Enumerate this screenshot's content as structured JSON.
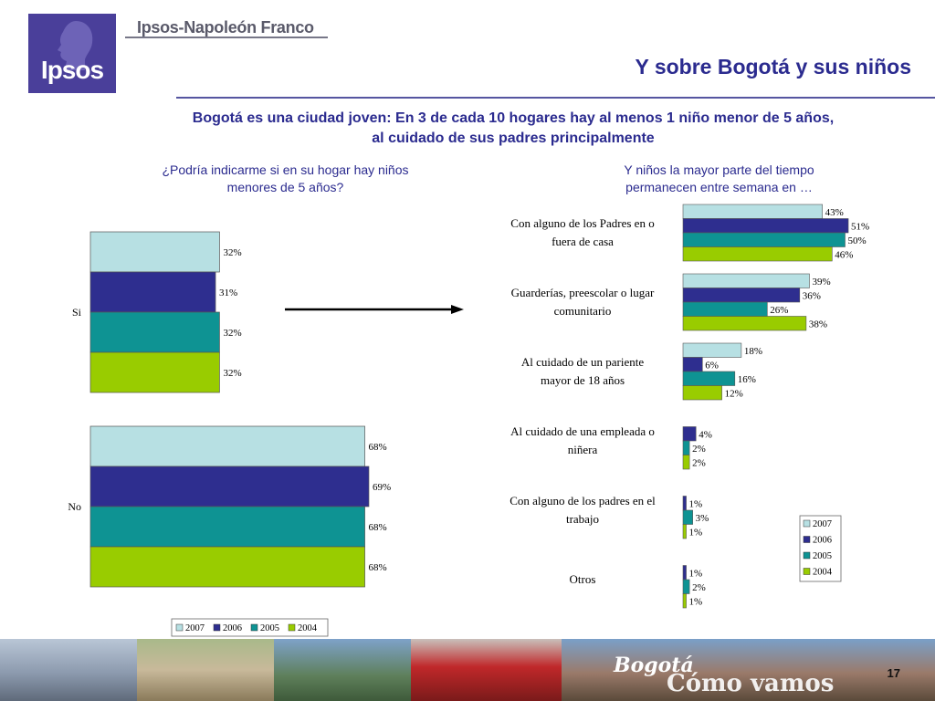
{
  "header": {
    "logo_text": "Ipsos",
    "brand": "Ipsos-Napoleón Franco",
    "title": "Y sobre Bogotá y sus niños"
  },
  "subtitle": {
    "line1": "Bogotá es una ciudad joven: En 3 de cada 10 hogares hay al menos 1 niño menor de 5 años,",
    "line2": "al cuidado de sus padres principalmente"
  },
  "questions": {
    "left_line1": "¿Podría indicarme si en su hogar hay niños",
    "left_line2": "menores de 5 años?",
    "right_line1": "Y niños la mayor parte del tiempo",
    "right_line2": "permanecen entre semana en …"
  },
  "colors": {
    "2007": "#b7e0e3",
    "2006": "#2e2e8f",
    "2005": "#0e9393",
    "2004": "#99cc00"
  },
  "chart_data": [
    {
      "type": "bar",
      "orientation": "horizontal",
      "categories": [
        "Si",
        "No"
      ],
      "series": [
        {
          "name": "2007",
          "values": [
            32,
            68
          ],
          "labels": [
            "32%",
            "68%"
          ]
        },
        {
          "name": "2006",
          "values": [
            31,
            69
          ],
          "labels": [
            "31%",
            "69%"
          ]
        },
        {
          "name": "2005",
          "values": [
            32,
            68
          ],
          "labels": [
            "32%",
            "68%"
          ]
        },
        {
          "name": "2004",
          "values": [
            32,
            68
          ],
          "labels": [
            "32%",
            "68%"
          ]
        }
      ],
      "legend": [
        "2007",
        "2006",
        "2005",
        "2004"
      ],
      "legend_position": "bottom",
      "grid": false
    },
    {
      "type": "bar",
      "orientation": "horizontal",
      "categories": [
        [
          "Con alguno de los Padres en o",
          "fuera de casa"
        ],
        [
          "Guarderías, preescolar o lugar",
          "comunitario"
        ],
        [
          "Al cuidado de un pariente",
          "mayor de 18 años"
        ],
        [
          "Al cuidado de una empleada o",
          "niñera"
        ],
        [
          "Con alguno de los padres en el",
          "trabajo"
        ],
        [
          "Otros"
        ]
      ],
      "series": [
        {
          "name": "2007",
          "values": [
            43,
            39,
            18,
            null,
            null,
            null
          ],
          "labels": [
            "43%",
            "39%",
            "18%",
            null,
            null,
            null
          ]
        },
        {
          "name": "2006",
          "values": [
            51,
            36,
            6,
            4,
            1,
            1
          ],
          "labels": [
            "51%",
            "36%",
            "6%",
            "4%",
            "1%",
            "1%"
          ]
        },
        {
          "name": "2005",
          "values": [
            50,
            26,
            16,
            2,
            3,
            2
          ],
          "labels": [
            "50%",
            "26%",
            "16%",
            "2%",
            "3%",
            "2%"
          ]
        },
        {
          "name": "2004",
          "values": [
            46,
            38,
            12,
            2,
            1,
            1
          ],
          "labels": [
            "46%",
            "38%",
            "12%",
            "2%",
            "1%",
            "1%"
          ]
        }
      ],
      "legend": [
        "2007",
        "2006",
        "2005",
        "2004"
      ],
      "legend_position": "right",
      "grid": false
    }
  ],
  "footer": {
    "banner_word1": "Bogotá",
    "banner_word2": "Cómo vamos",
    "page_number": "17"
  }
}
